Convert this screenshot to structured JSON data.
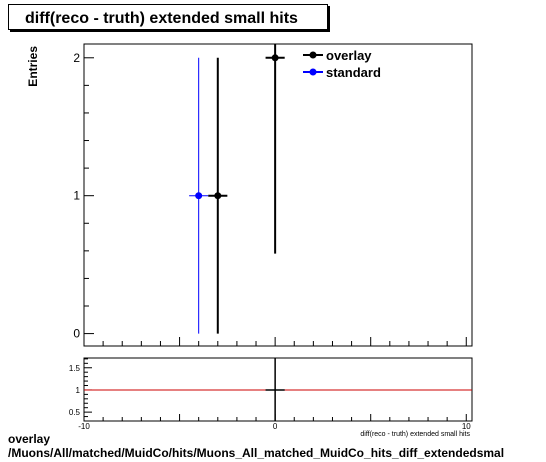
{
  "title": "diff(reco - truth) extended small hits",
  "footer": {
    "line1": "overlay",
    "line2": "/Muons/All/matched/MuidCo/hits/Muons_All_matched_MuidCo_hits_diff_extendedsmal"
  },
  "chart_data": [
    {
      "type": "scatter",
      "ylabel": "Entries",
      "xlim": [
        -10,
        10.3
      ],
      "ylim": [
        -0.09,
        2.1
      ],
      "yticks": [
        0,
        1,
        2
      ],
      "legend_position": "top-right",
      "series": [
        {
          "name": "overlay",
          "color": "#000000",
          "points": [
            {
              "x": -3,
              "y": 1,
              "yerr_low": 1,
              "yerr_high": 1,
              "xerr": 0.5
            },
            {
              "x": 0,
              "y": 2,
              "yerr_low": 1.42,
              "yerr_high": 1.42,
              "xerr": 0.5
            }
          ]
        },
        {
          "name": "standard",
          "color": "#0000ff",
          "points": [
            {
              "x": -4,
              "y": 1,
              "yerr_low": 1,
              "yerr_high": 1,
              "xerr": 0.5
            }
          ]
        }
      ]
    },
    {
      "type": "scatter",
      "xlabel": "diff(reco - truth) extended small hits",
      "xlim": [
        -10,
        10.3
      ],
      "ylim": [
        0.3,
        1.72
      ],
      "yticks": [
        0.5,
        1,
        1.5
      ],
      "xticks": [
        -10,
        0,
        10
      ],
      "reference_line": {
        "y": 1,
        "color": "#cc0000"
      },
      "points": [
        {
          "x": 0,
          "y": 1,
          "xerr": 0.5
        }
      ]
    }
  ]
}
